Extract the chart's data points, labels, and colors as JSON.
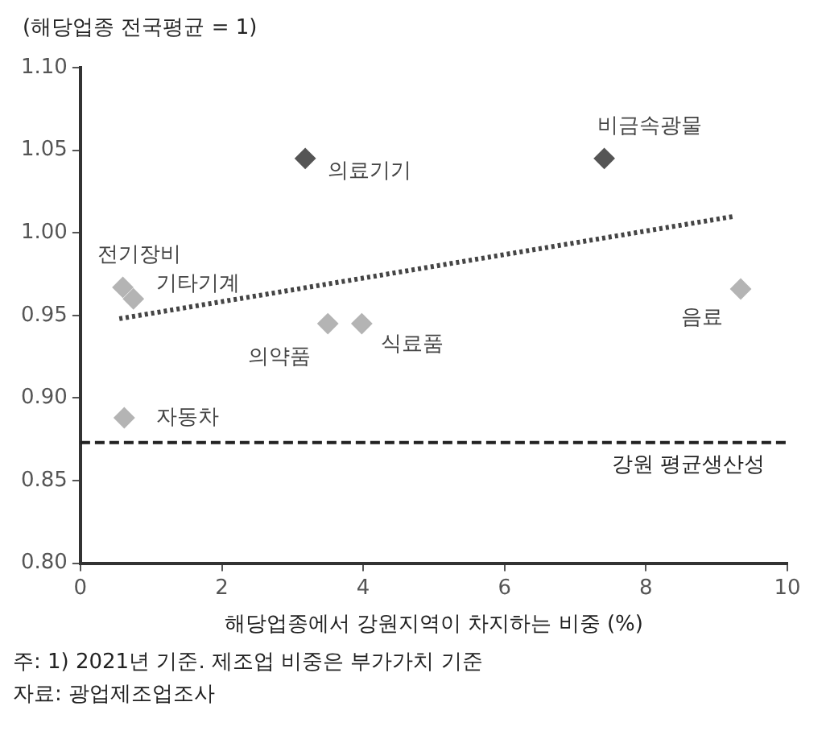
{
  "chart_data": {
    "type": "scatter",
    "ylabel": "(해당업종 전국평균 = 1)",
    "xlabel": "해당업종에서 강원지역이 차지하는 비중 (%)",
    "xlim": [
      0,
      10
    ],
    "xticks": [
      0,
      2,
      4,
      6,
      8,
      10
    ],
    "ylim": [
      0.8,
      1.1
    ],
    "yticks": [
      {
        "value": 0.8,
        "label": "0.80"
      },
      {
        "value": 0.85,
        "label": "0.85"
      },
      {
        "value": 0.9,
        "label": "0.90"
      },
      {
        "value": 0.95,
        "label": "0.95"
      },
      {
        "value": 1.0,
        "label": "1.00"
      },
      {
        "value": 1.05,
        "label": "1.05"
      },
      {
        "value": 1.1,
        "label": "1.10"
      }
    ],
    "grid": false,
    "legend": false,
    "marker": "diamond",
    "series": [
      {
        "color": "#555555",
        "x": [
          3.18,
          7.41
        ],
        "values": [
          1.045,
          1.045
        ]
      },
      {
        "color": "#b4b4b4",
        "x": [
          0.6,
          0.75,
          3.5,
          3.98,
          9.34,
          0.62
        ],
        "values": [
          0.967,
          0.96,
          0.945,
          0.945,
          0.966,
          0.888
        ]
      },
      {
        "type": "line",
        "color": "#444444",
        "line_style": "dotted",
        "marker": "none",
        "x": [
          0.55,
          9.25
        ],
        "values": [
          0.948,
          1.01
        ]
      }
    ],
    "ref_lines": [
      {
        "axis": "y",
        "value": 0.873,
        "label": "강원 평균생산성",
        "color": "#222222",
        "line_style": "dashed"
      }
    ],
    "annotations": [
      {
        "text": "의료기기",
        "x": 3.18,
        "y": 1.045
      },
      {
        "text": "비금속광물",
        "x": 7.41,
        "y": 1.045
      },
      {
        "text": "전기장비",
        "x": 0.6,
        "y": 0.967
      },
      {
        "text": "기타기계",
        "x": 0.75,
        "y": 0.96
      },
      {
        "text": "의약품",
        "x": 3.5,
        "y": 0.945
      },
      {
        "text": "식료품",
        "x": 3.98,
        "y": 0.945
      },
      {
        "text": "음료",
        "x": 9.34,
        "y": 0.966
      },
      {
        "text": "자동차",
        "x": 0.62,
        "y": 0.888
      },
      "주: 1) 2021년 기준. 제조업 비중은 부가가치 기준",
      "자료: 광업제조업조사"
    ]
  }
}
